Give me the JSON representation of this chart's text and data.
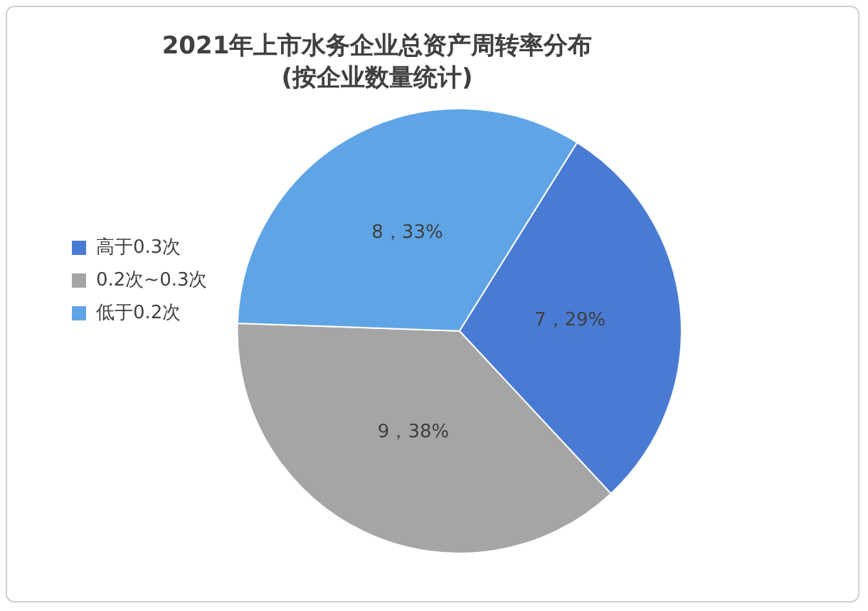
{
  "chart_data": {
    "type": "pie",
    "title": "2021年上市水务企业总资产周转率分布",
    "subtitle": "(按企业数量统计)",
    "categories": [
      "高于0.3次",
      "0.2次~0.3次",
      "低于0.2次"
    ],
    "values": [
      7,
      9,
      8
    ],
    "value_labels": [
      "7，29%",
      "9，38%",
      "8，33%"
    ],
    "colors": [
      "#4a7bd4",
      "#a5a5a5",
      "#5fa5e6"
    ],
    "legend": "left"
  }
}
